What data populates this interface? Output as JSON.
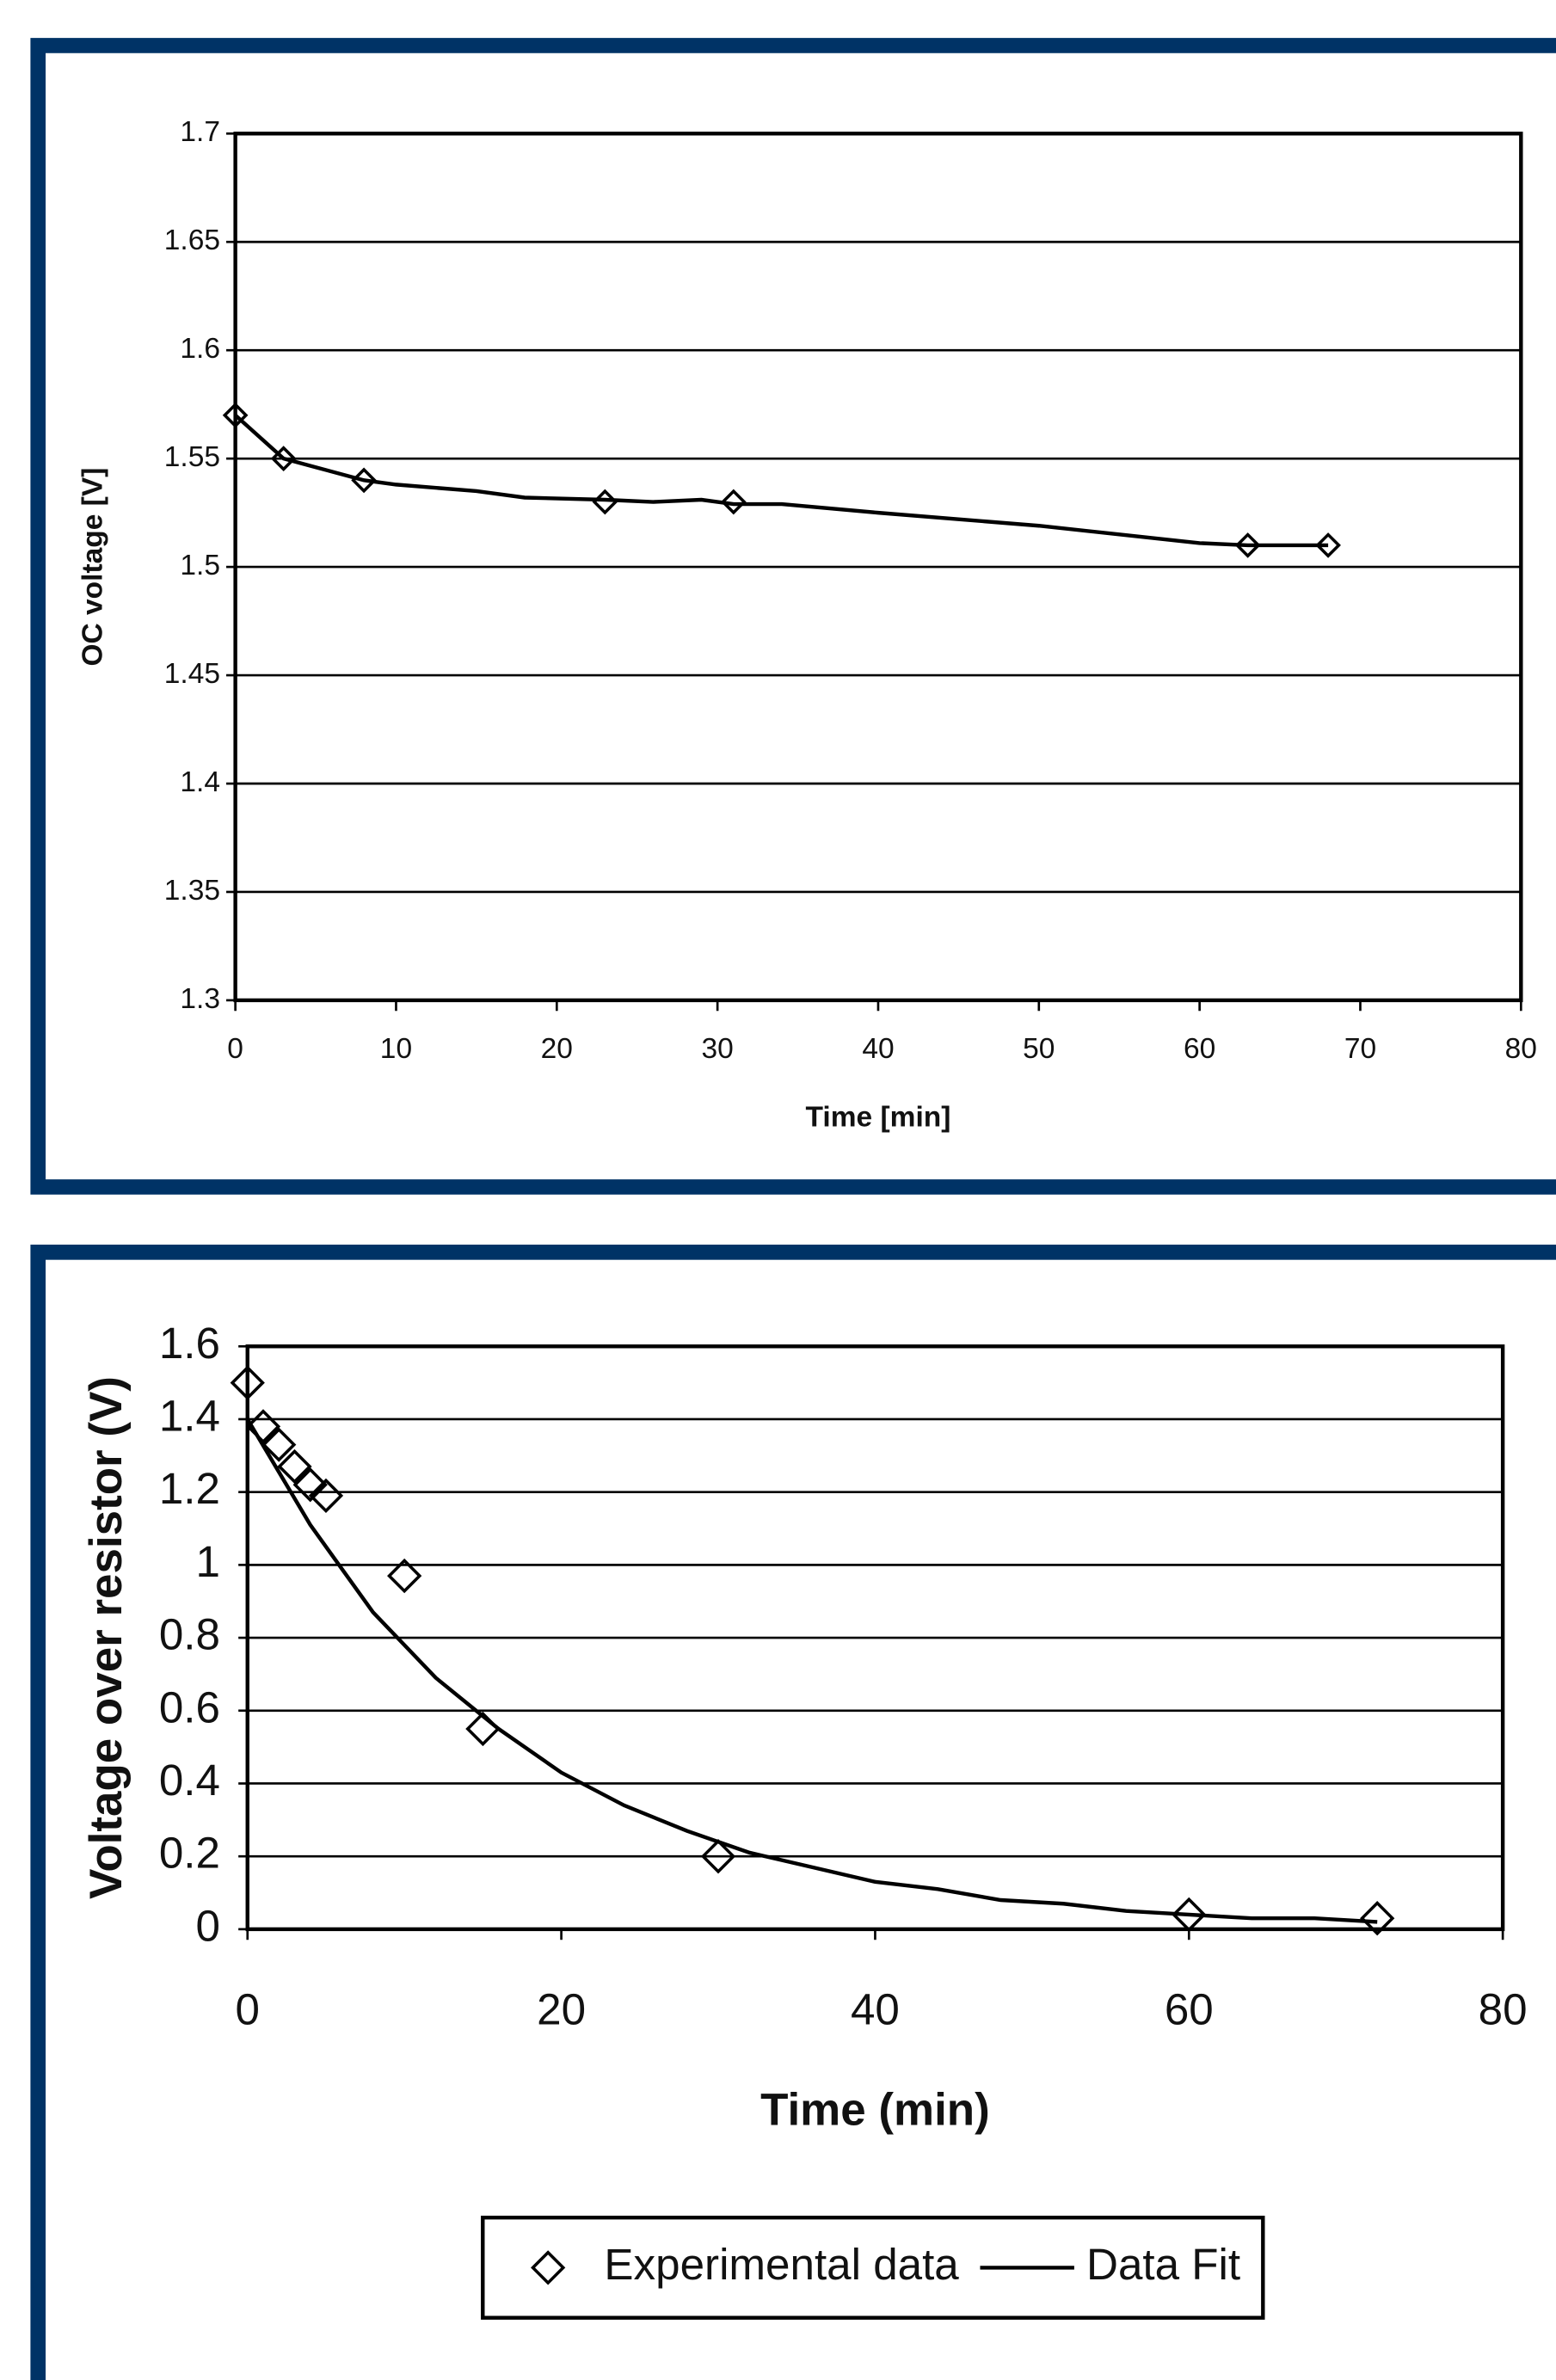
{
  "chart_data": [
    {
      "type": "scatter",
      "y_label": "OC voltage [V]",
      "x_label": "Time [min]",
      "xlim": [
        0,
        80
      ],
      "xticks": [
        0,
        10,
        20,
        30,
        40,
        50,
        60,
        70,
        80
      ],
      "ylim": [
        1.3,
        1.7
      ],
      "yticks": [
        1.3,
        1.35,
        1.4,
        1.45,
        1.5,
        1.55,
        1.6,
        1.65,
        1.7
      ],
      "grid": true,
      "series": [
        {
          "style": "markers",
          "color": "#000000",
          "x": [
            0,
            3,
            8,
            23,
            31,
            63,
            68
          ],
          "values": [
            1.57,
            1.55,
            1.54,
            1.53,
            1.53,
            1.51,
            1.51
          ]
        },
        {
          "style": "line",
          "color": "#000000",
          "x": [
            0,
            3,
            5,
            8,
            10,
            15,
            18,
            23,
            26,
            29,
            31,
            34,
            40,
            45,
            50,
            55,
            60,
            63,
            68
          ],
          "values": [
            1.57,
            1.55,
            1.546,
            1.54,
            1.538,
            1.535,
            1.532,
            1.531,
            1.53,
            1.531,
            1.529,
            1.529,
            1.525,
            1.522,
            1.519,
            1.515,
            1.511,
            1.51,
            1.51
          ]
        }
      ]
    },
    {
      "type": "scatter",
      "y_label": "Voltage over resistor (V)",
      "x_label": "Time (min)",
      "xlim": [
        0,
        80
      ],
      "xticks": [
        0,
        20,
        40,
        60,
        80
      ],
      "ylim": [
        0,
        1.6
      ],
      "yticks": [
        0,
        0.2,
        0.4,
        0.6,
        0.8,
        1,
        1.2,
        1.4,
        1.6
      ],
      "grid": true,
      "legend": "bottom",
      "series": [
        {
          "name": "Experimental data",
          "style": "markers",
          "color": "#000000",
          "x": [
            0,
            1,
            2,
            3,
            4,
            5,
            10,
            15,
            30,
            60,
            72
          ],
          "values": [
            1.5,
            1.38,
            1.33,
            1.27,
            1.22,
            1.19,
            0.97,
            0.55,
            0.2,
            0.04,
            0.03
          ]
        },
        {
          "name": "Data Fit",
          "style": "line",
          "color": "#000000",
          "x": [
            0,
            4,
            8,
            12,
            16,
            20,
            24,
            28,
            32,
            36,
            40,
            44,
            48,
            52,
            56,
            60,
            64,
            68,
            72
          ],
          "values": [
            1.4,
            1.11,
            0.87,
            0.69,
            0.55,
            0.43,
            0.34,
            0.27,
            0.21,
            0.17,
            0.13,
            0.11,
            0.08,
            0.07,
            0.05,
            0.04,
            0.03,
            0.03,
            0.02
          ]
        }
      ]
    }
  ]
}
